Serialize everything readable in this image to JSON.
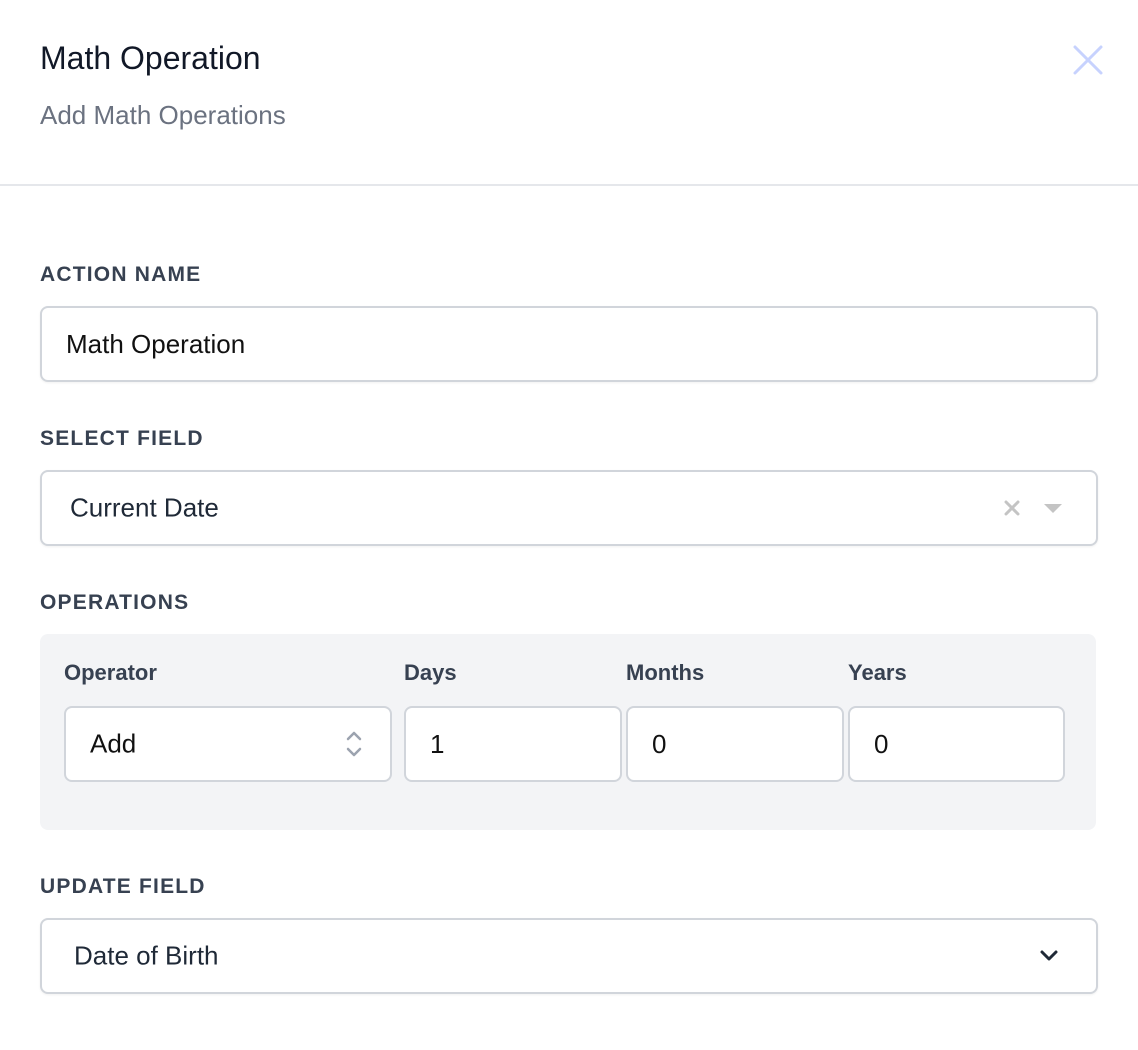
{
  "header": {
    "title": "Math Operation",
    "subtitle": "Add Math Operations",
    "close_icon": "close-icon",
    "close_color": "#c7d2fe"
  },
  "action_name": {
    "label": "Action Name",
    "value": "Math Operation"
  },
  "select_field": {
    "label": "Select Field",
    "value": "Current Date"
  },
  "operations": {
    "label": "Operations",
    "columns": [
      "Operator",
      "Days",
      "Months",
      "Years"
    ],
    "operator": "Add",
    "days": "1",
    "months": "0",
    "years": "0"
  },
  "update_field": {
    "label": "Update Field",
    "value": "Date of Birth"
  }
}
